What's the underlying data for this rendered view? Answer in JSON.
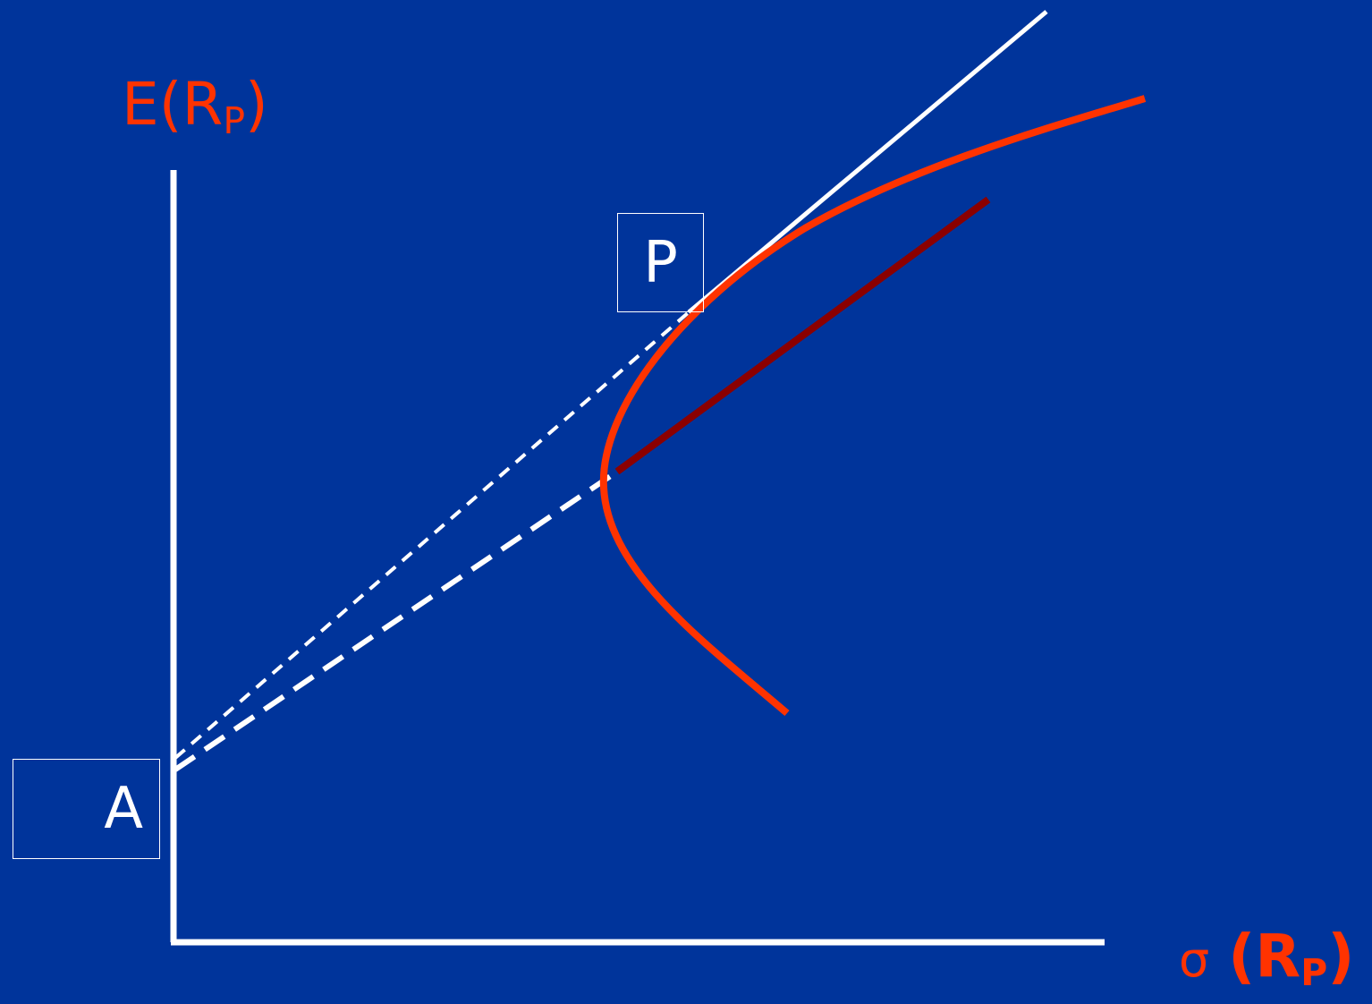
{
  "axes": {
    "y_label_main": "E(R",
    "y_label_sub": "P",
    "y_label_close": ")",
    "x_label_symbol": "σ",
    "x_label_main": "(R",
    "x_label_sub": "P",
    "x_label_close": ")"
  },
  "points": {
    "tangency": "P",
    "risk_free": "A"
  },
  "colors": {
    "background": "#00349b",
    "axis": "#ffffff",
    "frontier": "#ff3300",
    "efficient_segment": "#8b0000",
    "label_text": "#ff3300",
    "lines": "#ffffff"
  }
}
